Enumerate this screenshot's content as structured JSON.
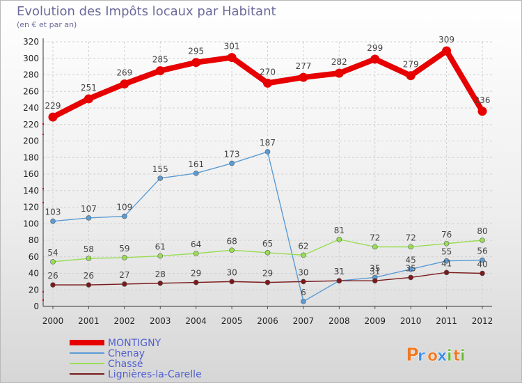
{
  "chart_data": {
    "type": "line",
    "title": "Evolution des Impôts locaux par Habitant",
    "subtitle": "(en € et par an)",
    "x": [
      "2000",
      "2001",
      "2002",
      "2003",
      "2004",
      "2005",
      "2006",
      "2007",
      "2008",
      "2009",
      "2010",
      "2011",
      "2012"
    ],
    "ylim": [
      0,
      320
    ],
    "yticks": [
      0,
      20,
      40,
      60,
      80,
      100,
      120,
      140,
      160,
      180,
      200,
      220,
      240,
      260,
      280,
      300,
      320
    ],
    "grid": true,
    "legend_position": "bottom-left",
    "series": [
      {
        "name": "MONTIGNY",
        "color": "#e60000",
        "values": [
          229,
          251,
          269,
          285,
          295,
          301,
          270,
          277,
          282,
          299,
          279,
          309,
          236
        ]
      },
      {
        "name": "Chenay",
        "color": "#5a9bd5",
        "values": [
          103,
          107,
          109,
          155,
          161,
          173,
          187,
          6,
          31,
          35,
          45,
          55,
          56
        ]
      },
      {
        "name": "Chassé",
        "color": "#99dd55",
        "values": [
          54,
          58,
          59,
          61,
          64,
          68,
          65,
          62,
          81,
          72,
          72,
          76,
          80
        ]
      },
      {
        "name": "Lignières-la-Carelle",
        "color": "#7a1a1a",
        "values": [
          26,
          26,
          27,
          28,
          29,
          30,
          29,
          30,
          31,
          31,
          35,
          41,
          40
        ]
      }
    ]
  },
  "brand": {
    "letters": [
      "P",
      "r",
      "o",
      "x",
      "i",
      "t",
      "i"
    ],
    "colors": [
      "#f07820",
      "#3a8ee6",
      "#f07820",
      "#3a8ee6",
      "#66bb33",
      "#f07820",
      "#66bb33"
    ]
  }
}
